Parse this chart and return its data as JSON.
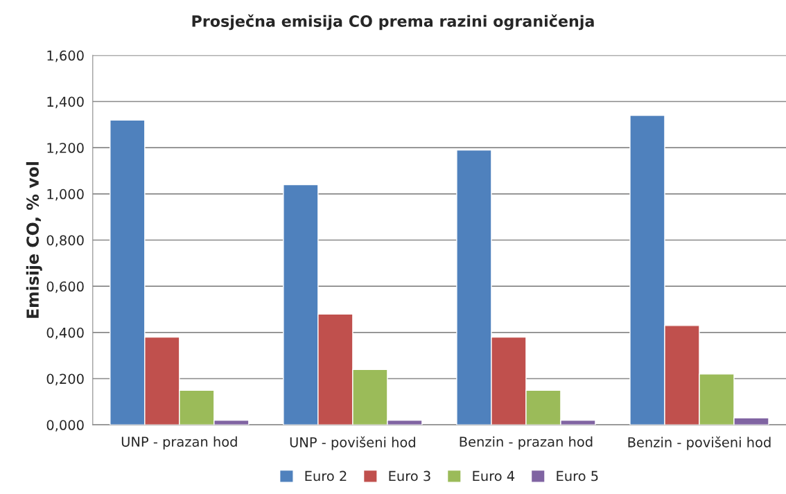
{
  "chart_data": {
    "type": "bar",
    "title": "Prosječna emisija CO prema razini ograničenja",
    "ylabel": "Emisije CO, % vol",
    "categories": [
      "UNP - prazan hod",
      "UNP - povišeni hod",
      "Benzin - prazan hod",
      "Benzin - povišeni hod"
    ],
    "series": [
      {
        "name": "Euro 2",
        "color": "#4f81bd",
        "values": [
          1.32,
          1.04,
          1.19,
          1.34
        ]
      },
      {
        "name": "Euro 3",
        "color": "#c0504d",
        "values": [
          0.38,
          0.48,
          0.38,
          0.43
        ]
      },
      {
        "name": "Euro 4",
        "color": "#9bbb59",
        "values": [
          0.15,
          0.24,
          0.15,
          0.22
        ]
      },
      {
        "name": "Euro 5",
        "color": "#8064a2",
        "values": [
          0.02,
          0.02,
          0.02,
          0.03
        ]
      }
    ],
    "ylim": [
      0,
      1.6
    ],
    "yticks": [
      {
        "value": 0,
        "label": "0,000"
      },
      {
        "value": 0.2,
        "label": "0,200"
      },
      {
        "value": 0.4,
        "label": "0,400"
      },
      {
        "value": 0.6,
        "label": "0,600"
      },
      {
        "value": 0.8,
        "label": "0,800"
      },
      {
        "value": 1.0,
        "label": "1,000"
      },
      {
        "value": 1.2,
        "label": "1,200"
      },
      {
        "value": 1.4,
        "label": "1,400"
      },
      {
        "value": 1.6,
        "label": "1,600"
      }
    ],
    "grid": "y",
    "legend": "bottom"
  }
}
